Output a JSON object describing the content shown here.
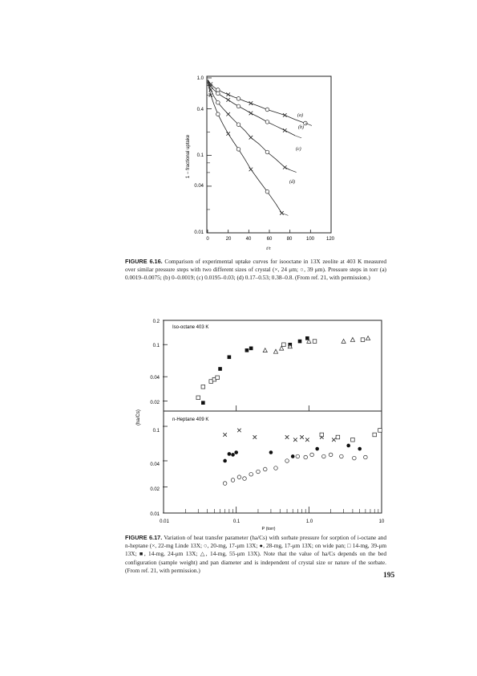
{
  "fig616": {
    "ylabel": "1 − fractional uptake",
    "xlabel": "t/τ",
    "yticks": [
      "1.0",
      "0.4",
      "0.1",
      "0.04",
      "0.01"
    ],
    "xticks": [
      "0",
      "20",
      "40",
      "60",
      "80",
      "100",
      "120"
    ],
    "curve_labels": [
      "(a)",
      "(b)",
      "(c)",
      "(d)"
    ],
    "caption_label": "FIGURE 6.16.",
    "caption_text": "Comparison of experimental uptake curves for isooctane in 13X zeolite at 403 K measured over similar pressure steps with two different sizes of crystal (×, 24 μm; ○, 39 μm). Pressure steps in torr (a) 0.0019–0.0075; (b) 0–0.0019; (c) 0.0195–0.03; (d) 0.17–0.53; 0.38–0.8. (From ref. 21, with permission.)"
  },
  "fig617": {
    "ylabel": "(ha/Cs)",
    "xlabel": "P (torr)",
    "xticks": [
      "0.01",
      "0.1",
      "1.0",
      "10"
    ],
    "yticks_top": [
      "0.2",
      "0.1",
      "0.04",
      "0.02"
    ],
    "yticks_bottom": [
      "0.1",
      "0.04",
      "0.02",
      "0.01"
    ],
    "panel_top_label": "Iso-octane 403 K",
    "panel_bottom_label": "n-Heptane 409 K",
    "caption_label": "FIGURE 6.17.",
    "caption_text": "Variation of heat transfer parameter (ha/Cs) with sorbate pressure for sorption of i-octane and n-heptane (×, 22-mg Linde 13X; ○, 20-mg, 17-μm 13X; ●, 28-mg, 17-μm 13X; on wide pan; □ 14-mg, 39-μm 13X; ■, 14-mg, 24-μm 13X; △, 14-mg, 55-μm 13X). Note that the value of ha/Cs depends on the bed configuration (sample weight) and pan diameter and is independent of crystal size or nature of the sorbate. (From ref. 21, with permission.)"
  },
  "page_number": "195",
  "chart_data": [
    {
      "type": "scatter",
      "title": "",
      "xlabel": "t/τ",
      "ylabel": "1 − fractional uptake",
      "xlim": [
        0,
        120
      ],
      "ylim": [
        0.01,
        1.0
      ],
      "yscale": "log",
      "series": [
        {
          "name": "(a)",
          "x": [
            0,
            3,
            6,
            10,
            15,
            20,
            25,
            30,
            36,
            42,
            50,
            58,
            66,
            75,
            85,
            95
          ],
          "y": [
            0.95,
            0.83,
            0.76,
            0.7,
            0.65,
            0.61,
            0.57,
            0.54,
            0.5,
            0.47,
            0.43,
            0.39,
            0.36,
            0.33,
            0.29,
            0.26
          ]
        },
        {
          "name": "(b)",
          "x": [
            0,
            3,
            6,
            10,
            15,
            20,
            25,
            30,
            36,
            42,
            50,
            58,
            66,
            75,
            85
          ],
          "y": [
            0.93,
            0.78,
            0.7,
            0.63,
            0.57,
            0.52,
            0.47,
            0.43,
            0.39,
            0.35,
            0.31,
            0.27,
            0.24,
            0.21,
            0.18
          ]
        },
        {
          "name": "(c)",
          "x": [
            0,
            3,
            6,
            10,
            15,
            20,
            25,
            30,
            36,
            42,
            50,
            58,
            66,
            75,
            80
          ],
          "y": [
            0.9,
            0.7,
            0.58,
            0.48,
            0.4,
            0.34,
            0.29,
            0.25,
            0.21,
            0.17,
            0.14,
            0.11,
            0.09,
            0.07,
            0.065
          ]
        },
        {
          "name": "(d)",
          "x": [
            0,
            3,
            6,
            10,
            15,
            20,
            25,
            30,
            36,
            42,
            50,
            58,
            66,
            72
          ],
          "y": [
            0.88,
            0.6,
            0.46,
            0.34,
            0.25,
            0.19,
            0.15,
            0.12,
            0.09,
            0.066,
            0.047,
            0.034,
            0.024,
            0.018
          ]
        }
      ]
    },
    {
      "type": "scatter",
      "title": "Iso-octane 403 K",
      "xlabel": "P (torr)",
      "ylabel": "(ha/Cs)",
      "xscale": "log",
      "yscale": "log",
      "xlim": [
        0.01,
        10
      ],
      "ylim": [
        0.015,
        0.2
      ],
      "series": [
        {
          "name": "□",
          "x": [
            0.03,
            0.035,
            0.045,
            0.05,
            0.055
          ],
          "y": [
            0.022,
            0.03,
            0.035,
            0.037,
            0.039
          ]
        },
        {
          "name": "■",
          "x": [
            0.035,
            0.06,
            0.08,
            0.14,
            0.16,
            0.55,
            0.75,
            0.95
          ],
          "y": [
            0.019,
            0.05,
            0.07,
            0.085,
            0.09,
            0.1,
            0.11,
            0.12
          ]
        },
        {
          "name": "△",
          "x": [
            0.25,
            0.35,
            0.42,
            0.55,
            1.0,
            3.0,
            4.0,
            6.5
          ],
          "y": [
            0.085,
            0.082,
            0.09,
            0.095,
            0.11,
            0.11,
            0.115,
            0.12
          ]
        },
        {
          "name": "□",
          "x": [
            0.45,
            1.2,
            5.5
          ],
          "y": [
            0.1,
            0.11,
            0.115
          ]
        }
      ]
    },
    {
      "type": "scatter",
      "title": "n-Heptane 409 K",
      "xlabel": "P (torr)",
      "ylabel": "(ha/Cs)",
      "xscale": "log",
      "yscale": "log",
      "xlim": [
        0.01,
        10
      ],
      "ylim": [
        0.01,
        0.15
      ],
      "series": [
        {
          "name": "×",
          "x": [
            0.07,
            0.11,
            0.18,
            0.5,
            0.65,
            0.8,
            0.95,
            1.5,
            2.2
          ],
          "y": [
            0.08,
            0.09,
            0.075,
            0.075,
            0.07,
            0.075,
            0.07,
            0.075,
            0.07
          ]
        },
        {
          "name": "○",
          "x": [
            0.07,
            0.09,
            0.11,
            0.13,
            0.16,
            0.2,
            0.25,
            0.35,
            0.5,
            0.7,
            0.9,
            1.1,
            1.6,
            2.0,
            2.8,
            4.2,
            6.0
          ],
          "y": [
            0.022,
            0.024,
            0.026,
            0.025,
            0.028,
            0.03,
            0.032,
            0.033,
            0.04,
            0.045,
            0.044,
            0.047,
            0.045,
            0.047,
            0.045,
            0.043,
            0.044
          ]
        },
        {
          "name": "●",
          "x": [
            0.07,
            0.08,
            0.09,
            0.1,
            0.3,
            0.6,
            1.3,
            3.5,
            5.0
          ],
          "y": [
            0.04,
            0.048,
            0.047,
            0.05,
            0.05,
            0.045,
            0.055,
            0.06,
            0.055
          ]
        },
        {
          "name": "□",
          "x": [
            1.5,
            2.5,
            4.0,
            8.0,
            9.5
          ],
          "y": [
            0.08,
            0.075,
            0.07,
            0.08,
            0.09
          ]
        }
      ]
    }
  ]
}
